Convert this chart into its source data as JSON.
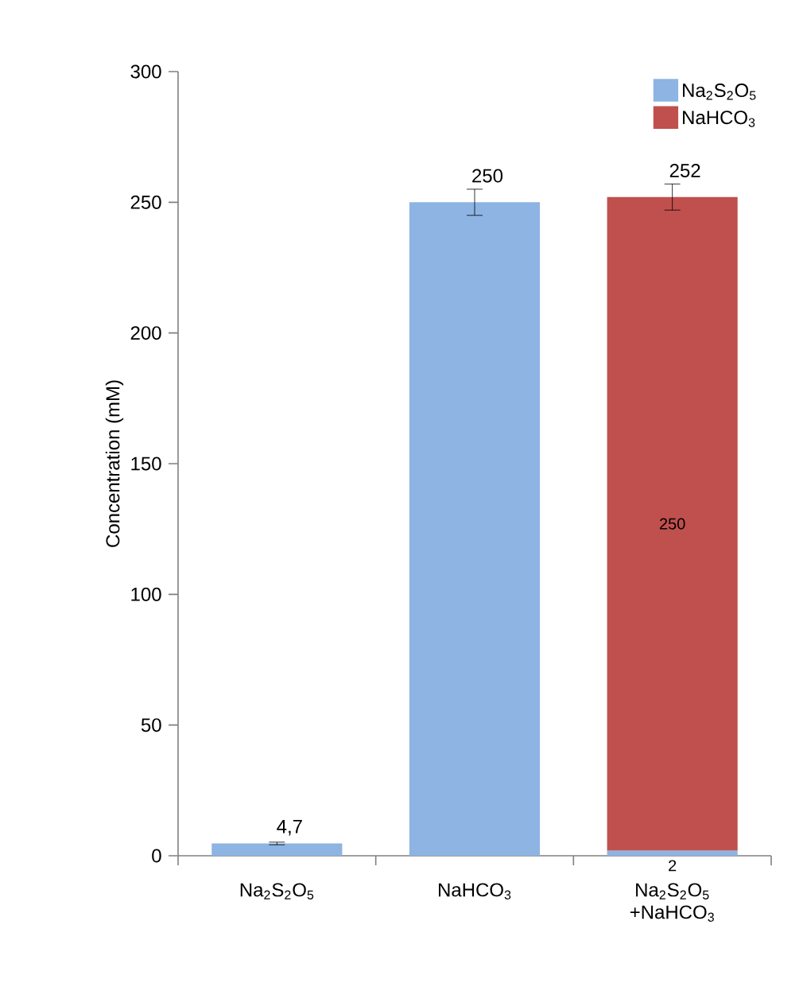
{
  "chart_data": {
    "type": "bar",
    "stacked": true,
    "ylabel": "Concentration (mM)",
    "categories": [
      "Na$_{2}$S$_{2}$O$_{5}$",
      "NaHCO$_{3}$",
      "Na$_{2}$S$_{2}$O$_{5}$ +NaHCO$_{3}$"
    ],
    "series": [
      {
        "name": "Na$_{2}$S$_{2}$O$_{5}$",
        "color": "#8db4e2",
        "values": [
          4.7,
          250,
          2
        ],
        "errors": [
          0.5,
          5,
          null
        ],
        "value_labels": [
          null,
          null,
          "2"
        ]
      },
      {
        "name": "NaHCO$_{3}$",
        "color": "#c0504d",
        "values": [
          null,
          null,
          250
        ],
        "errors": [
          null,
          null,
          5
        ],
        "value_labels": [
          null,
          null,
          "250"
        ]
      }
    ],
    "totals": [
      "4,7",
      "250",
      "252"
    ],
    "ylim": [
      0,
      300
    ],
    "yticks": [
      0,
      50,
      100,
      150,
      200,
      250,
      300
    ],
    "legend": "top right",
    "grid": false
  }
}
